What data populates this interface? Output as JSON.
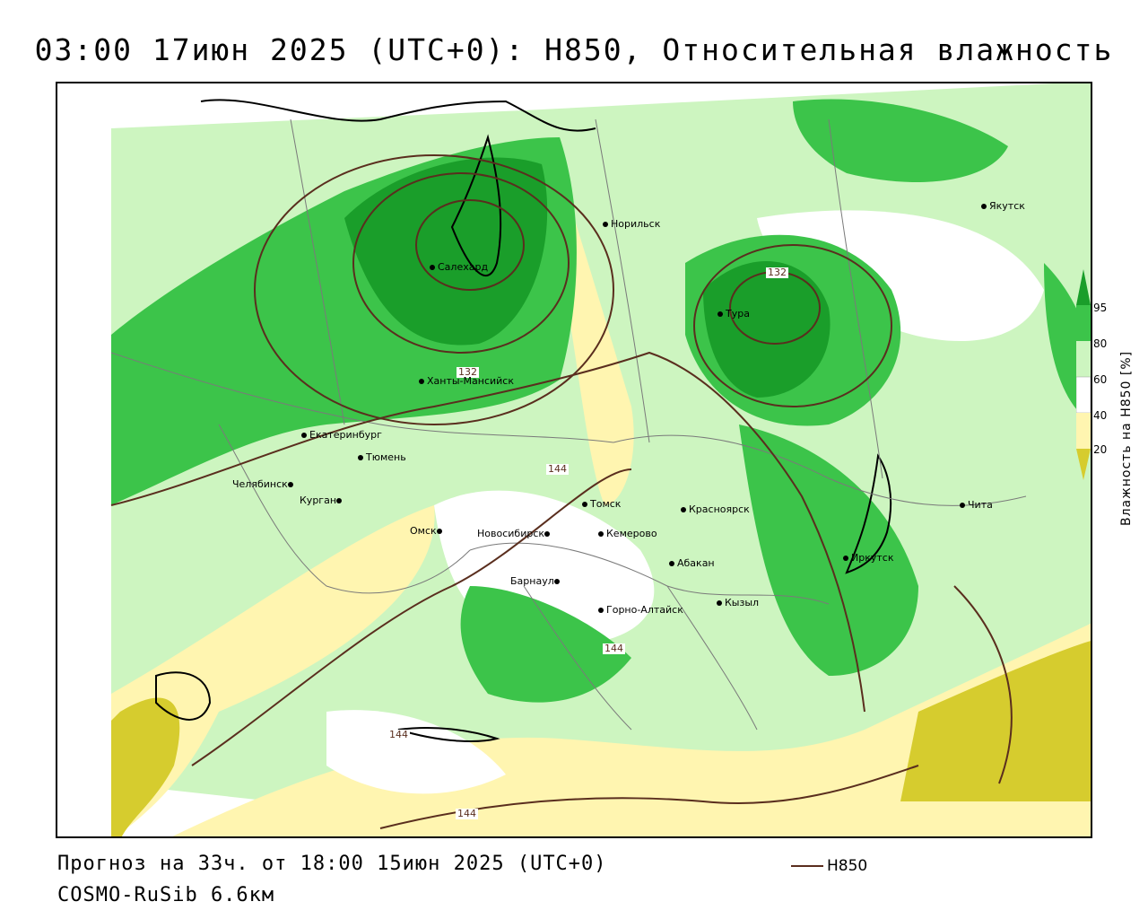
{
  "title": "03:00 17июн 2025 (UTC+0): H850, Относительная влажность",
  "footer": {
    "forecast": "Прогноз на 33ч. от 18:00 15июн 2025 (UTC+0)",
    "model": "COSMO-RuSib 6.6км"
  },
  "legend": {
    "h850_label": "H850"
  },
  "colorbar": {
    "label": "Влажность на H850 [%]",
    "ticks": [
      "95",
      "80",
      "60",
      "40",
      "20"
    ],
    "colors": {
      "c95": "#1a9e2a",
      "c80": "#3cc44a",
      "c60": "#cdf5c0",
      "c40": "#ffffff",
      "c20": "#fff5b0",
      "c10": "#d6cc2e"
    }
  },
  "cities": [
    {
      "name": "Якутск"
    },
    {
      "name": "Норильск"
    },
    {
      "name": "Салехард"
    },
    {
      "name": "Тура"
    },
    {
      "name": "Ханты-Мансийск"
    },
    {
      "name": "Екатеринбург"
    },
    {
      "name": "Тюмень"
    },
    {
      "name": "Челябинск"
    },
    {
      "name": "Курган"
    },
    {
      "name": "Омск"
    },
    {
      "name": "Новосибирск"
    },
    {
      "name": "Томск"
    },
    {
      "name": "Кемерово"
    },
    {
      "name": "Красноярск"
    },
    {
      "name": "Абакан"
    },
    {
      "name": "Иркутск"
    },
    {
      "name": "Чита"
    },
    {
      "name": "Барнаул"
    },
    {
      "name": "Горно-Алтайск"
    },
    {
      "name": "Кызыл"
    }
  ],
  "isolines": [
    "132",
    "132",
    "132",
    "144",
    "144",
    "144",
    "144"
  ]
}
